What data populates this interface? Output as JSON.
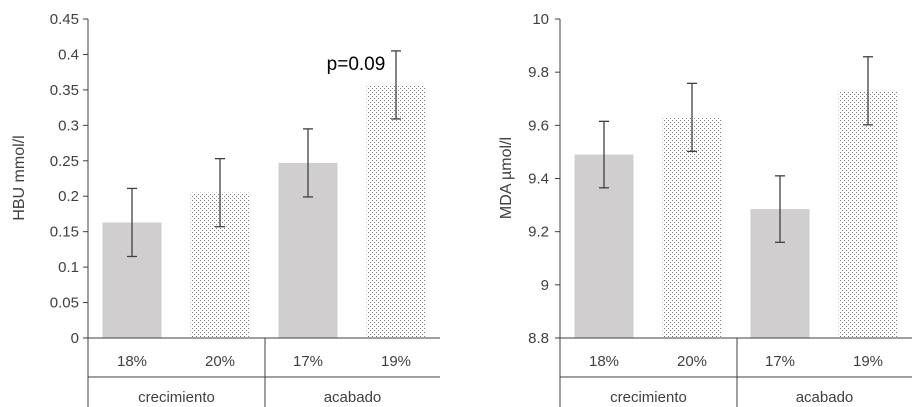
{
  "chart_data": [
    {
      "type": "bar",
      "ylabel": "HBU mmol/l",
      "ylim": [
        0,
        0.45
      ],
      "yticks": [
        "0",
        "0.05",
        "0.1",
        "0.15",
        "0.2",
        "0.25",
        "0.3",
        "0.35",
        "0.4",
        "0.45"
      ],
      "categories": [
        "18%",
        "20%",
        "17%",
        "19%"
      ],
      "groups": [
        {
          "label": "crecimiento",
          "categories": [
            "18%",
            "20%"
          ]
        },
        {
          "label": "acabado",
          "categories": [
            "17%",
            "19%"
          ]
        }
      ],
      "values": [
        0.163,
        0.205,
        0.247,
        0.357
      ],
      "errors": [
        0.048,
        0.048,
        0.048,
        0.048
      ],
      "patterns": [
        "solid",
        "dotted",
        "solid",
        "dotted"
      ],
      "annotations": [
        {
          "text": "p=0.09",
          "category": "19%"
        }
      ],
      "grid": false
    },
    {
      "type": "bar",
      "ylabel": "MDA µmol/l",
      "ylim": [
        8.8,
        10
      ],
      "yticks": [
        "8.8",
        "9",
        "9.2",
        "9.4",
        "9.6",
        "9.8",
        "10"
      ],
      "categories": [
        "18%",
        "20%",
        "17%",
        "19%"
      ],
      "groups": [
        {
          "label": "crecimiento",
          "categories": [
            "18%",
            "20%"
          ]
        },
        {
          "label": "acabado",
          "categories": [
            "17%",
            "19%"
          ]
        }
      ],
      "values": [
        9.49,
        9.63,
        9.285,
        9.73
      ],
      "errors": [
        0.125,
        0.128,
        0.125,
        0.128
      ],
      "patterns": [
        "solid",
        "dotted",
        "solid",
        "dotted"
      ],
      "grid": false
    }
  ],
  "colors": {
    "solid_bar": "#d0cece",
    "dot_pattern": "#7f7f7f",
    "axis": "#404040"
  }
}
